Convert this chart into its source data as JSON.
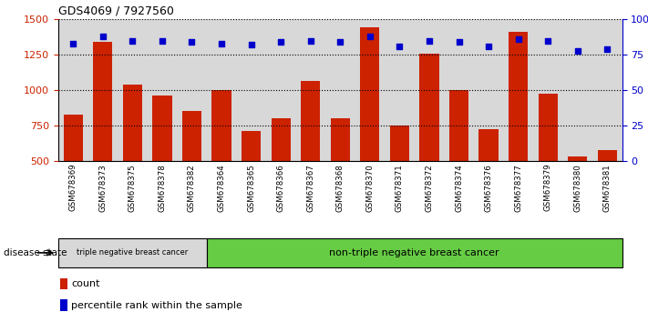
{
  "title": "GDS4069 / 7927560",
  "samples": [
    "GSM678369",
    "GSM678373",
    "GSM678375",
    "GSM678378",
    "GSM678382",
    "GSM678364",
    "GSM678365",
    "GSM678366",
    "GSM678367",
    "GSM678368",
    "GSM678370",
    "GSM678371",
    "GSM678372",
    "GSM678374",
    "GSM678376",
    "GSM678377",
    "GSM678379",
    "GSM678380",
    "GSM678381"
  ],
  "counts": [
    830,
    1340,
    1040,
    960,
    855,
    1000,
    710,
    800,
    1065,
    800,
    1445,
    750,
    1255,
    1000,
    725,
    1410,
    975,
    530,
    580
  ],
  "percentiles": [
    83,
    88,
    85,
    85,
    84,
    83,
    82,
    84,
    85,
    84,
    88,
    81,
    85,
    84,
    81,
    86,
    85,
    78,
    79
  ],
  "ylim_left": [
    500,
    1500
  ],
  "ylim_right": [
    0,
    100
  ],
  "yticks_left": [
    500,
    750,
    1000,
    1250,
    1500
  ],
  "yticks_right": [
    0,
    25,
    50,
    75,
    100
  ],
  "ytick_labels_right": [
    "0",
    "25",
    "50",
    "75",
    "100%"
  ],
  "bar_color": "#cc2200",
  "dot_color": "#0000cc",
  "grid_color": "#000000",
  "triple_neg_count": 5,
  "triple_neg_label": "triple negative breast cancer",
  "non_triple_neg_label": "non-triple negative breast cancer",
  "triple_neg_bg": "#d8d8d8",
  "non_triple_neg_bg": "#66cc44",
  "disease_state_label": "disease state",
  "legend_count_label": "count",
  "legend_percentile_label": "percentile rank within the sample",
  "axis_label_color_left": "#cc2200",
  "axis_label_color_right": "#0000cc",
  "tick_bg_color": "#d8d8d8",
  "background_color": "#ffffff"
}
